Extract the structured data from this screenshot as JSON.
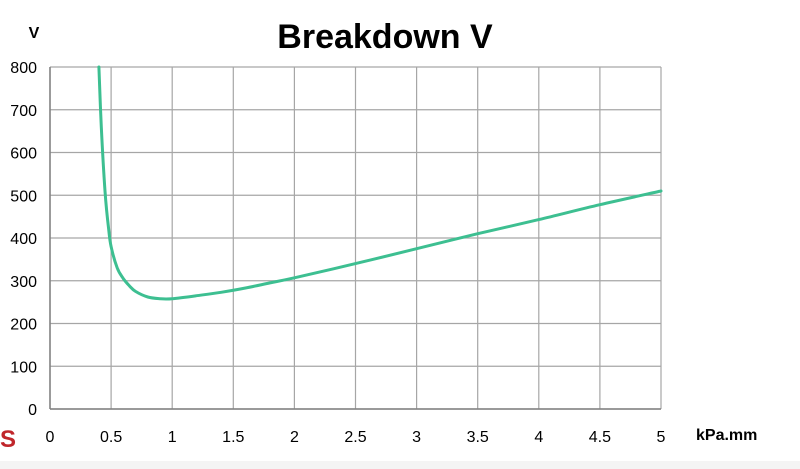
{
  "chart_data": {
    "type": "line",
    "title": "Breakdown V",
    "ylabel": "V",
    "xlabel": "kPa.mm",
    "xlim": [
      0,
      5
    ],
    "ylim": [
      0,
      800
    ],
    "x_ticks": [
      "0",
      "0.5",
      "1",
      "1.5",
      "2",
      "2.5",
      "3",
      "3.5",
      "4",
      "4.5",
      "5"
    ],
    "y_ticks": [
      "0",
      "100",
      "200",
      "300",
      "400",
      "500",
      "600",
      "700",
      "800"
    ],
    "grid": true,
    "series": [
      {
        "color": "#3dbf91",
        "x": [
          0.4,
          0.42,
          0.45,
          0.48,
          0.5,
          0.55,
          0.6,
          0.65,
          0.7,
          0.8,
          0.9,
          1.0,
          1.2,
          1.4,
          1.6,
          1.8,
          2.0,
          2.5,
          3.0,
          3.5,
          4.0,
          4.5,
          5.0
        ],
        "y": [
          800,
          660,
          510,
          420,
          380,
          330,
          305,
          288,
          275,
          262,
          258,
          258,
          265,
          273,
          283,
          295,
          307,
          340,
          375,
          410,
          443,
          478,
          510
        ]
      }
    ]
  },
  "decor": {
    "corner_glyph": "S"
  }
}
